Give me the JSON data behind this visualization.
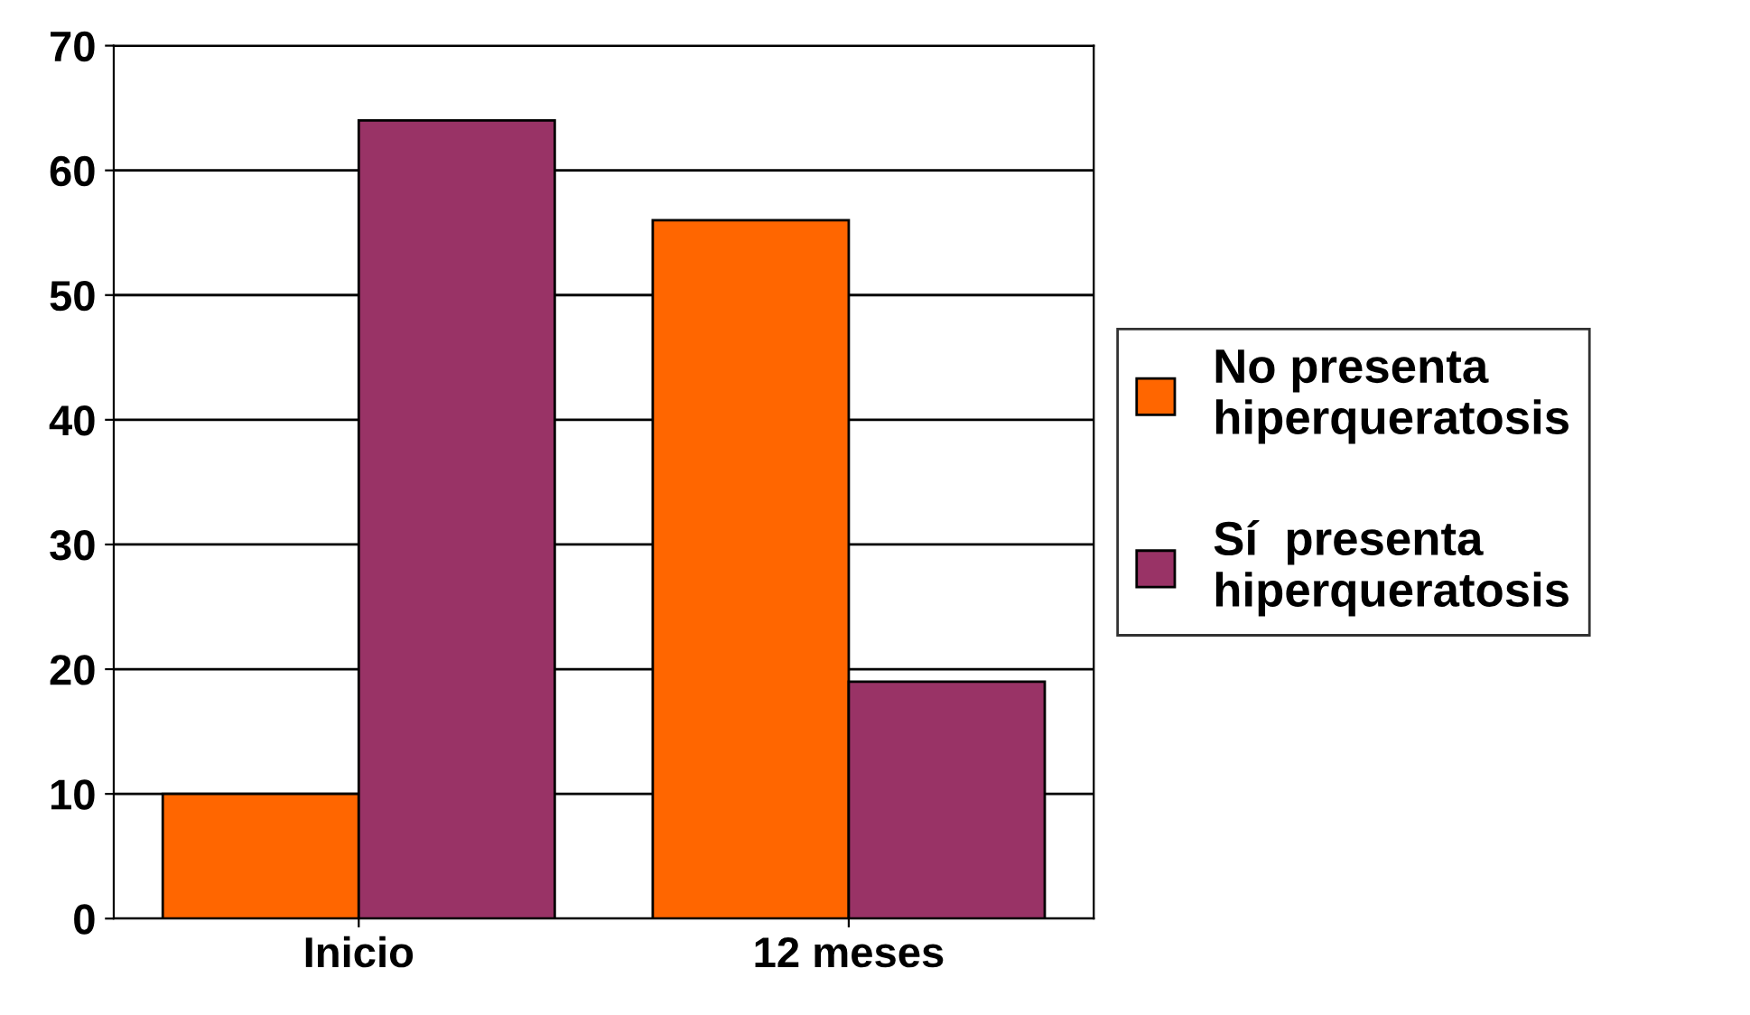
{
  "chart_data": {
    "type": "bar",
    "categories": [
      "Inicio",
      "12 meses"
    ],
    "series": [
      {
        "name": "No presenta hiperqueratosis",
        "color": "#ff6600",
        "values": [
          10,
          56
        ]
      },
      {
        "name": "Sí  presenta hiperqueratosis",
        "color": "#993366",
        "values": [
          64,
          19
        ]
      }
    ],
    "ylim": [
      0,
      70
    ],
    "yticks": [
      0,
      10,
      20,
      30,
      40,
      50,
      60,
      70
    ],
    "grid": "y",
    "legend": "right"
  }
}
